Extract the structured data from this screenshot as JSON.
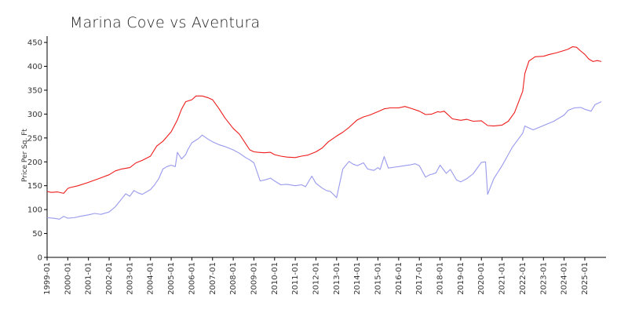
{
  "chart_data": {
    "type": "line",
    "title": "Marina Cove vs Aventura",
    "xlabel": "",
    "ylabel": "Price Per Sq. Ft",
    "ylim": [
      0,
      460
    ],
    "yticks": [
      0,
      50,
      100,
      150,
      200,
      250,
      300,
      350,
      400,
      450
    ],
    "xlim": [
      1999.0,
      2025.95
    ],
    "xtick_labels": [
      "1999-01",
      "2000-01",
      "2001-01",
      "2002-01",
      "2003-01",
      "2004-01",
      "2005-01",
      "2006-01",
      "2007-01",
      "2008-01",
      "2009-01",
      "2010-01",
      "2011-01",
      "2012-01",
      "2013-01",
      "2014-01",
      "2015-01",
      "2016-01",
      "2017-01",
      "2018-01",
      "2019-01",
      "2020-01",
      "2021-01",
      "2022-01",
      "2023-01",
      "2024-01",
      "2025-01"
    ],
    "grid": false,
    "series": [
      {
        "color": "#ee1c1c",
        "x": [
          1999.0,
          1999.2,
          1999.5,
          1999.8,
          2000.0,
          2000.1,
          2000.5,
          2001.0,
          2001.5,
          2002.0,
          2002.3,
          2002.6,
          2003.0,
          2003.3,
          2003.6,
          2004.0,
          2004.3,
          2004.6,
          2005.0,
          2005.3,
          2005.5,
          2005.7,
          2006.0,
          2006.2,
          2006.5,
          2006.8,
          2007.0,
          2007.3,
          2007.6,
          2008.0,
          2008.3,
          2008.6,
          2008.8,
          2009.0,
          2009.2,
          2009.5,
          2009.8,
          2010.0,
          2010.3,
          2010.6,
          2011.0,
          2011.3,
          2011.6,
          2012.0,
          2012.3,
          2012.6,
          2013.0,
          2013.3,
          2013.6,
          2014.0,
          2014.3,
          2014.6,
          2015.0,
          2015.3,
          2015.6,
          2016.0,
          2016.3,
          2016.6,
          2017.0,
          2017.3,
          2017.6,
          2017.9,
          2018.0,
          2018.2,
          2018.6,
          2019.0,
          2019.3,
          2019.6,
          2020.0,
          2020.3,
          2020.6,
          2021.0,
          2021.3,
          2021.6,
          2022.0,
          2022.1,
          2022.3,
          2022.6,
          2023.0,
          2023.3,
          2023.6,
          2024.0,
          2024.2,
          2024.4,
          2024.6,
          2024.8,
          2025.0,
          2025.2,
          2025.4,
          2025.6,
          2025.8
        ],
        "values": [
          138,
          136,
          137,
          134,
          144,
          146,
          150,
          157,
          165,
          173,
          181,
          185,
          188,
          198,
          203,
          212,
          233,
          243,
          263,
          288,
          310,
          326,
          330,
          338,
          338,
          334,
          330,
          312,
          292,
          270,
          258,
          238,
          225,
          221,
          220,
          219,
          220,
          215,
          212,
          210,
          209,
          212,
          214,
          221,
          229,
          242,
          254,
          262,
          272,
          288,
          294,
          298,
          305,
          311,
          313,
          313,
          316,
          312,
          306,
          299,
          300,
          305,
          304,
          306,
          290,
          287,
          289,
          285,
          286,
          276,
          275,
          277,
          285,
          303,
          348,
          385,
          411,
          420,
          421,
          425,
          428,
          433,
          436,
          441,
          440,
          432,
          425,
          415,
          410,
          412,
          410
        ]
      },
      {
        "color": "#9999ee",
        "x": [
          1999.0,
          1999.3,
          1999.6,
          1999.8,
          2000.0,
          2000.3,
          2000.6,
          2001.0,
          2001.3,
          2001.6,
          2002.0,
          2002.3,
          2002.6,
          2002.8,
          2003.0,
          2003.2,
          2003.4,
          2003.6,
          2004.0,
          2004.2,
          2004.4,
          2004.6,
          2004.8,
          2005.0,
          2005.2,
          2005.3,
          2005.5,
          2005.7,
          2005.8,
          2006.0,
          2006.3,
          2006.5,
          2006.8,
          2007.0,
          2007.3,
          2007.6,
          2008.0,
          2008.3,
          2008.6,
          2008.8,
          2009.0,
          2009.3,
          2009.6,
          2009.8,
          2010.0,
          2010.3,
          2010.6,
          2011.0,
          2011.3,
          2011.5,
          2011.8,
          2012.0,
          2012.3,
          2012.5,
          2012.7,
          2013.0,
          2013.3,
          2013.6,
          2013.8,
          2014.0,
          2014.3,
          2014.5,
          2014.8,
          2015.0,
          2015.1,
          2015.3,
          2015.5,
          2015.8,
          2016.0,
          2016.3,
          2016.6,
          2016.8,
          2017.0,
          2017.3,
          2017.5,
          2017.6,
          2017.8,
          2018.0,
          2018.3,
          2018.5,
          2018.8,
          2019.0,
          2019.3,
          2019.6,
          2020.0,
          2020.2,
          2020.3,
          2020.6,
          2021.0,
          2021.5,
          2022.0,
          2022.1,
          2022.5,
          2023.0,
          2023.5,
          2024.0,
          2024.2,
          2024.5,
          2024.8,
          2025.0,
          2025.3,
          2025.5,
          2025.8
        ],
        "values": [
          83,
          82,
          80,
          86,
          82,
          83,
          86,
          89,
          92,
          90,
          95,
          106,
          122,
          133,
          128,
          140,
          135,
          132,
          142,
          152,
          165,
          185,
          190,
          193,
          190,
          220,
          206,
          215,
          225,
          240,
          248,
          256,
          247,
          242,
          236,
          232,
          225,
          218,
          209,
          204,
          198,
          160,
          163,
          166,
          160,
          152,
          153,
          150,
          152,
          148,
          170,
          155,
          145,
          140,
          138,
          125,
          185,
          201,
          195,
          192,
          198,
          185,
          182,
          188,
          184,
          211,
          187,
          189,
          190,
          192,
          194,
          196,
          192,
          168,
          173,
          174,
          177,
          193,
          176,
          184,
          162,
          158,
          165,
          175,
          199,
          200,
          132,
          165,
          192,
          231,
          260,
          275,
          267,
          276,
          285,
          298,
          308,
          313,
          314,
          310,
          306,
          320,
          326
        ]
      }
    ]
  }
}
